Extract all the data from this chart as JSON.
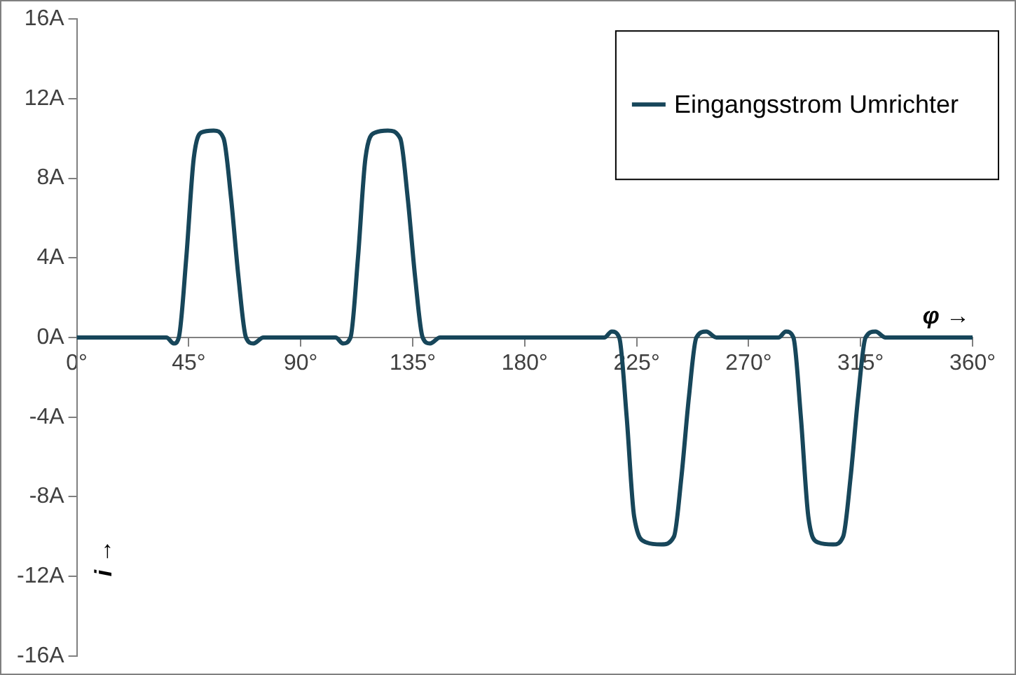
{
  "chart_data": {
    "type": "line",
    "xlabel": "φ →",
    "ylabel": "i →",
    "x": [
      0,
      30,
      36,
      39,
      41,
      44,
      47,
      50,
      55,
      59,
      62,
      65,
      68,
      71,
      75,
      90,
      104,
      107,
      110,
      113,
      116,
      120,
      125,
      130,
      133,
      136,
      139,
      142,
      146,
      180,
      212,
      215,
      218,
      221,
      224,
      229,
      235,
      240,
      243,
      246,
      249,
      253,
      257,
      282,
      285,
      288,
      291,
      294,
      298,
      304,
      308,
      311,
      314,
      317,
      321,
      325,
      360
    ],
    "series": [
      {
        "name": "Eingangsstrom Umrichter",
        "color": "#17465a",
        "values": [
          0,
          0,
          0,
          -0.3,
          0,
          4,
          9,
          10.3,
          10.4,
          10,
          7,
          3,
          0,
          -0.3,
          0,
          0,
          0,
          -0.3,
          0,
          4,
          9,
          10.3,
          10.4,
          10,
          7,
          3,
          0,
          -0.3,
          0,
          0,
          0,
          0.3,
          0,
          -4,
          -9,
          -10.3,
          -10.4,
          -10,
          -7,
          -3,
          0,
          0.3,
          0,
          0,
          0.3,
          0,
          -4,
          -9,
          -10.3,
          -10.4,
          -10,
          -7,
          -3,
          0,
          0.3,
          0,
          0
        ]
      }
    ],
    "xlim": [
      0,
      360
    ],
    "xticks": [
      {
        "value": 0,
        "label": "0°"
      },
      {
        "value": 45,
        "label": "45°"
      },
      {
        "value": 90,
        "label": "90°"
      },
      {
        "value": 135,
        "label": "135°"
      },
      {
        "value": 180,
        "label": "180°"
      },
      {
        "value": 225,
        "label": "225°"
      },
      {
        "value": 270,
        "label": "270°"
      },
      {
        "value": 315,
        "label": "315°"
      },
      {
        "value": 360,
        "label": "360°"
      }
    ],
    "ylim": [
      -16,
      16
    ],
    "yticks": [
      {
        "value": -16,
        "label": "-16A"
      },
      {
        "value": -12,
        "label": "-12A"
      },
      {
        "value": -8,
        "label": "-8A"
      },
      {
        "value": -4,
        "label": "-4A"
      },
      {
        "value": 0,
        "label": "0A"
      },
      {
        "value": 4,
        "label": "4A"
      },
      {
        "value": 8,
        "label": "8A"
      },
      {
        "value": 12,
        "label": "12A"
      },
      {
        "value": 16,
        "label": "16A"
      }
    ],
    "grid": false,
    "legend": "top right",
    "marker": "none",
    "line_style": "solid"
  }
}
